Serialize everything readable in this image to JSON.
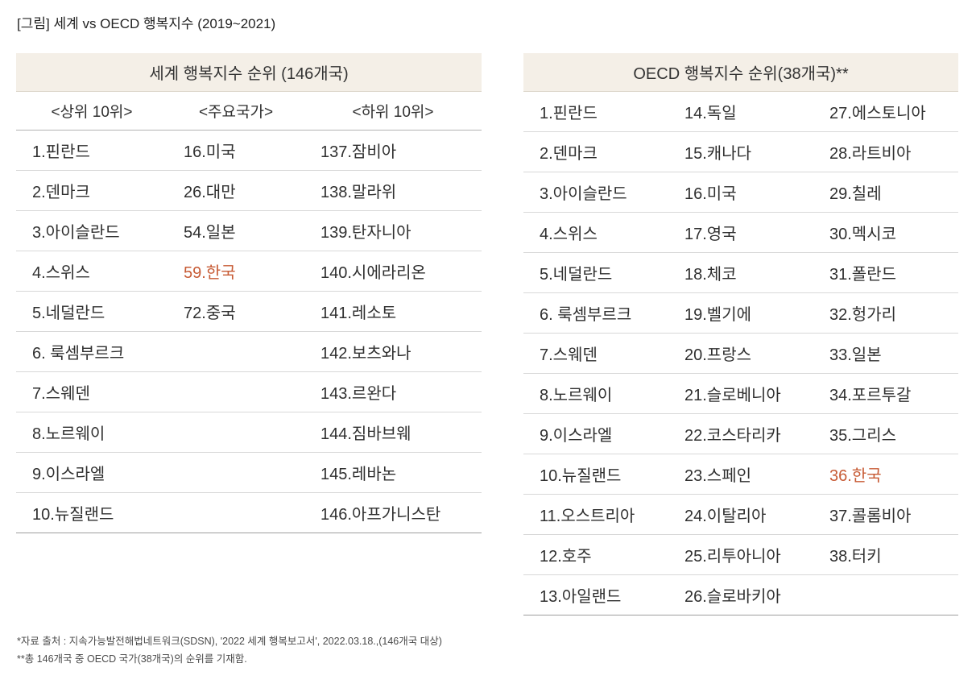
{
  "page": {
    "title": "[그림] 세계 vs OECD 행복지수 (2019~2021)",
    "footnotes": [
      "*자료 출처 : 지속가능발전해법네트워크(SDSN), '2022 세계 행복보고서', 2022.03.18.,(146개국 대상)",
      "**총 146개국 중 OECD 국가(38개국)의 순위를 기재함."
    ]
  },
  "colors": {
    "header_bg": "#f4efe7",
    "highlight": "#c75b35",
    "text": "#2f2f2f",
    "row_border": "#d8d8d8",
    "table_bottom_border": "#9e9e9e"
  },
  "chart_data": [
    {
      "type": "table",
      "title": "세계 행복지수 순위 (146개국)",
      "columns": [
        "<상위 10위>",
        "<주요국가>",
        "<하위 10위>"
      ],
      "rows": [
        [
          "1.핀란드",
          "16.미국",
          "137.잠비아"
        ],
        [
          "2.덴마크",
          "26.대만",
          "138.말라위"
        ],
        [
          "3.아이슬란드",
          "54.일본",
          "139.탄자니아"
        ],
        [
          "4.스위스",
          "59.한국",
          "140.시에라리온"
        ],
        [
          "5.네덜란드",
          "72.중국",
          "141.레소토"
        ],
        [
          "6. 룩셈부르크",
          "",
          "142.보츠와나"
        ],
        [
          "7.스웨덴",
          "",
          "143.르완다"
        ],
        [
          "8.노르웨이",
          "",
          "144.짐바브웨"
        ],
        [
          "9.이스라엘",
          "",
          "145.레바논"
        ],
        [
          "10.뉴질랜드",
          "",
          "146.아프가니스탄"
        ]
      ],
      "highlight": {
        "row": 3,
        "col": 1,
        "value": "59.한국"
      }
    },
    {
      "type": "table",
      "title": "OECD 행복지수 순위(38개국)**",
      "columns": [],
      "rows": [
        [
          "1.핀란드",
          "14.독일",
          "27.에스토니아"
        ],
        [
          "2.덴마크",
          "15.캐나다",
          "28.라트비아"
        ],
        [
          "3.아이슬란드",
          "16.미국",
          "29.칠레"
        ],
        [
          "4.스위스",
          "17.영국",
          "30.멕시코"
        ],
        [
          "5.네덜란드",
          "18.체코",
          "31.폴란드"
        ],
        [
          "6. 룩셈부르크",
          "19.벨기에",
          "32.헝가리"
        ],
        [
          "7.스웨덴",
          "20.프랑스",
          "33.일본"
        ],
        [
          "8.노르웨이",
          "21.슬로베니아",
          "34.포르투갈"
        ],
        [
          "9.이스라엘",
          "22.코스타리카",
          "35.그리스"
        ],
        [
          "10.뉴질랜드",
          "23.스페인",
          "36.한국"
        ],
        [
          "11.오스트리아",
          "24.이탈리아",
          "37.콜롬비아"
        ],
        [
          "12.호주",
          "25.리투아니아",
          "38.터키"
        ],
        [
          "13.아일랜드",
          "26.슬로바키아",
          ""
        ]
      ],
      "highlight": {
        "row": 9,
        "col": 2,
        "value": "36.한국"
      }
    }
  ]
}
